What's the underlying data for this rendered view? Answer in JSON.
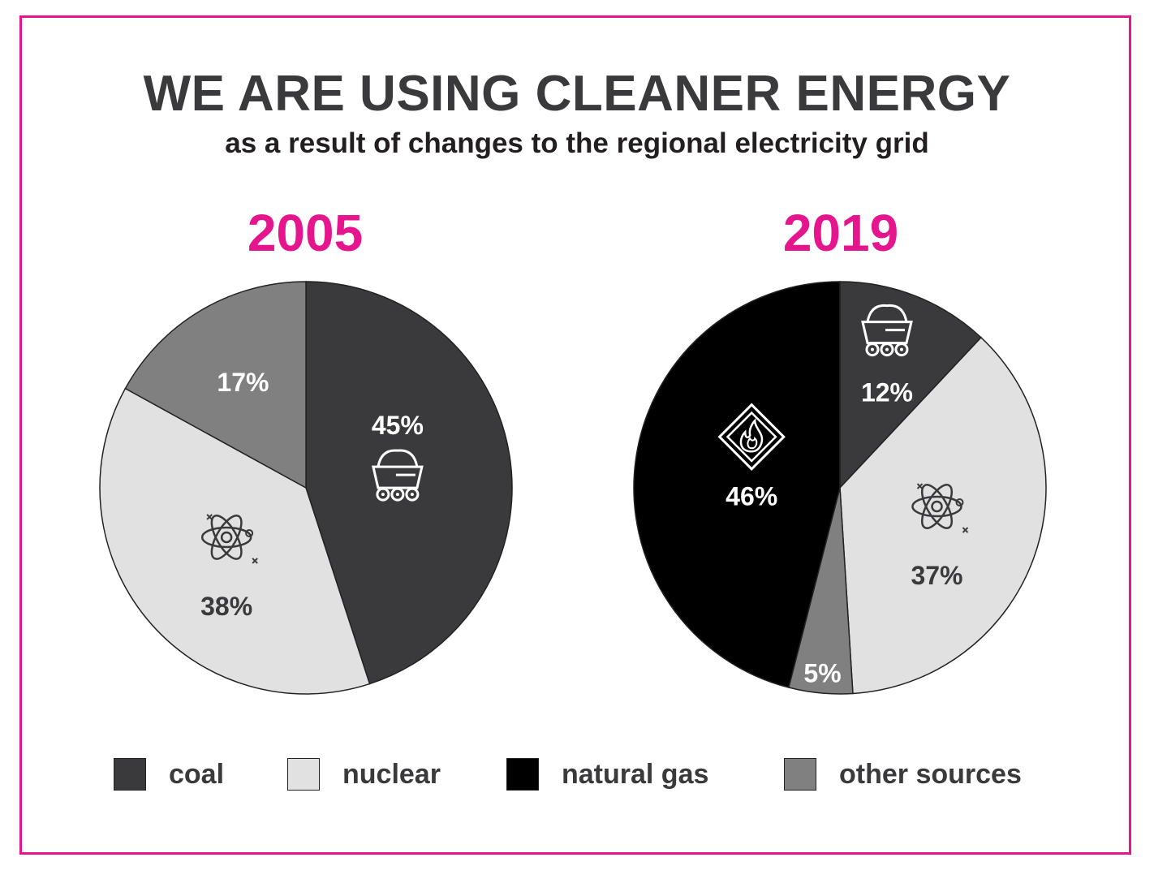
{
  "title": "WE ARE USING CLEANER ENERGY",
  "subtitle": "as a result of changes to the regional electricity grid",
  "colors": {
    "frame": "#e5168d",
    "year": "#e5168d",
    "coal": "#3a393b",
    "nuclear": "#e1e1e1",
    "natural_gas": "#000000",
    "other": "#808080"
  },
  "legend": [
    {
      "label": "coal",
      "key": "coal"
    },
    {
      "label": "nuclear",
      "key": "nuclear"
    },
    {
      "label": "natural gas",
      "key": "natural_gas"
    },
    {
      "label": "other sources",
      "key": "other"
    }
  ],
  "chart_data": [
    {
      "type": "pie",
      "title": "2005",
      "slices": [
        {
          "name": "coal",
          "value": 45,
          "label": "45%",
          "icon": "coal-cart-icon"
        },
        {
          "name": "nuclear",
          "value": 38,
          "label": "38%",
          "icon": "atom-icon"
        },
        {
          "name": "other sources",
          "value": 17,
          "label": "17%",
          "icon": ""
        }
      ]
    },
    {
      "type": "pie",
      "title": "2019",
      "slices": [
        {
          "name": "coal",
          "value": 12,
          "label": "12%",
          "icon": "coal-cart-icon"
        },
        {
          "name": "nuclear",
          "value": 37,
          "label": "37%",
          "icon": "atom-icon"
        },
        {
          "name": "other sources",
          "value": 5,
          "label": "5%",
          "icon": ""
        },
        {
          "name": "natural gas",
          "value": 46,
          "label": "46%",
          "icon": "gas-flame-icon"
        }
      ]
    }
  ]
}
